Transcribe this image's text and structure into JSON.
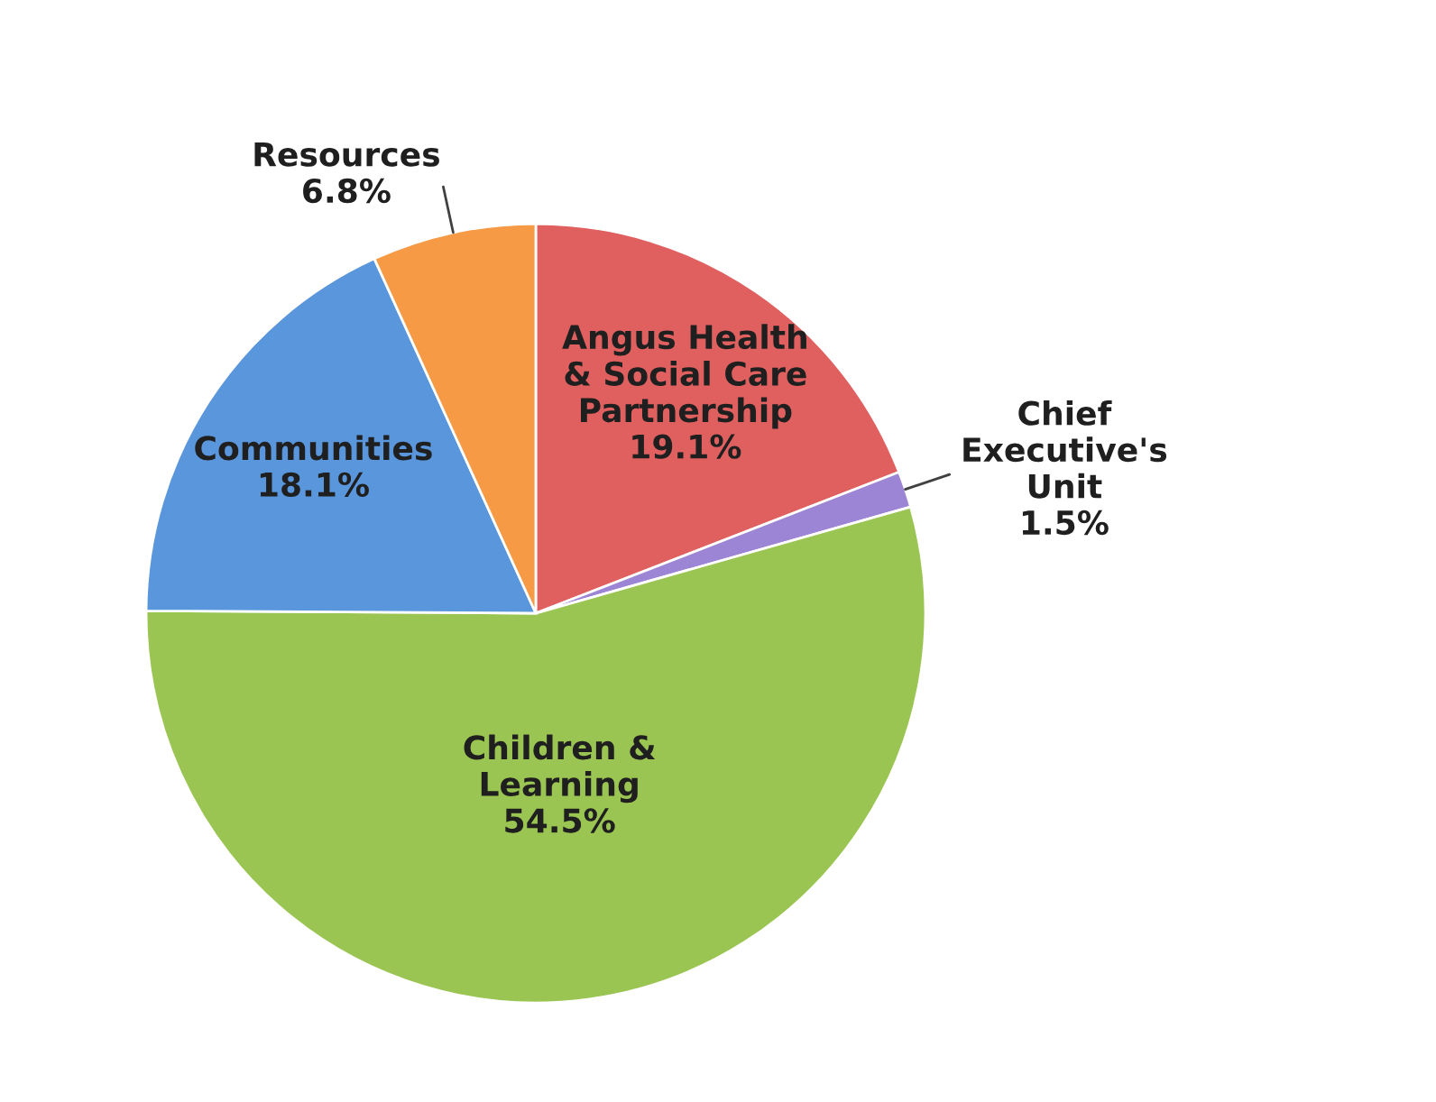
{
  "chart_data": {
    "type": "pie",
    "categories": [
      "Angus Health\n& Social Care\nPartnership",
      "Chief\nExecutive's\nUnit",
      "Children &\nLearning",
      "Communities",
      "Resources"
    ],
    "values": [
      19.1,
      1.5,
      54.5,
      18.1,
      6.8
    ],
    "colors": [
      "#e06060",
      "#9d85d6",
      "#9bc552",
      "#5a96dc",
      "#f79a45"
    ],
    "value_labels": [
      "19.1%",
      "1.5%",
      "54.5%",
      "18.1%",
      "6.8%"
    ]
  }
}
